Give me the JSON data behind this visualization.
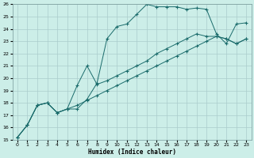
{
  "title": "",
  "xlabel": "Humidex (Indice chaleur)",
  "xlim": [
    -0.5,
    23.5
  ],
  "ylim": [
    15,
    26
  ],
  "xticks": [
    0,
    1,
    2,
    3,
    4,
    5,
    6,
    7,
    8,
    9,
    10,
    11,
    12,
    13,
    14,
    15,
    16,
    17,
    18,
    19,
    20,
    21,
    22,
    23
  ],
  "yticks": [
    15,
    16,
    17,
    18,
    19,
    20,
    21,
    22,
    23,
    24,
    25,
    26
  ],
  "bg_color": "#cceee8",
  "grid_color": "#aacccc",
  "line_color": "#1a6b6b",
  "lines": [
    {
      "x": [
        0,
        1,
        2,
        3,
        4,
        5,
        6,
        7,
        8,
        9,
        10,
        11,
        12,
        13,
        14,
        15,
        16,
        17,
        18,
        19,
        20,
        21,
        22,
        23
      ],
      "y": [
        15.2,
        16.2,
        17.8,
        18.0,
        17.2,
        17.5,
        17.5,
        18.3,
        19.6,
        23.2,
        24.2,
        24.4,
        25.2,
        26.0,
        25.8,
        25.8,
        25.8,
        25.6,
        25.7,
        25.6,
        23.6,
        22.8,
        24.4,
        24.5
      ]
    },
    {
      "x": [
        0,
        1,
        2,
        3,
        4,
        5,
        6,
        7,
        8,
        9,
        10,
        11,
        12,
        13,
        14,
        15,
        16,
        17,
        18,
        19,
        20,
        21,
        22,
        23
      ],
      "y": [
        15.2,
        16.2,
        17.8,
        18.0,
        17.2,
        17.5,
        19.4,
        21.0,
        19.5,
        19.8,
        20.2,
        20.6,
        21.0,
        21.4,
        22.0,
        22.4,
        22.8,
        23.2,
        23.6,
        23.4,
        23.4,
        23.2,
        22.8,
        23.2
      ]
    },
    {
      "x": [
        0,
        1,
        2,
        3,
        4,
        5,
        6,
        7,
        8,
        9,
        10,
        11,
        12,
        13,
        14,
        15,
        16,
        17,
        18,
        19,
        20,
        21,
        22,
        23
      ],
      "y": [
        15.2,
        16.2,
        17.8,
        18.0,
        17.2,
        17.5,
        17.8,
        18.2,
        18.6,
        19.0,
        19.4,
        19.8,
        20.2,
        20.6,
        21.0,
        21.4,
        21.8,
        22.2,
        22.6,
        23.0,
        23.4,
        23.2,
        22.8,
        23.2
      ]
    }
  ]
}
